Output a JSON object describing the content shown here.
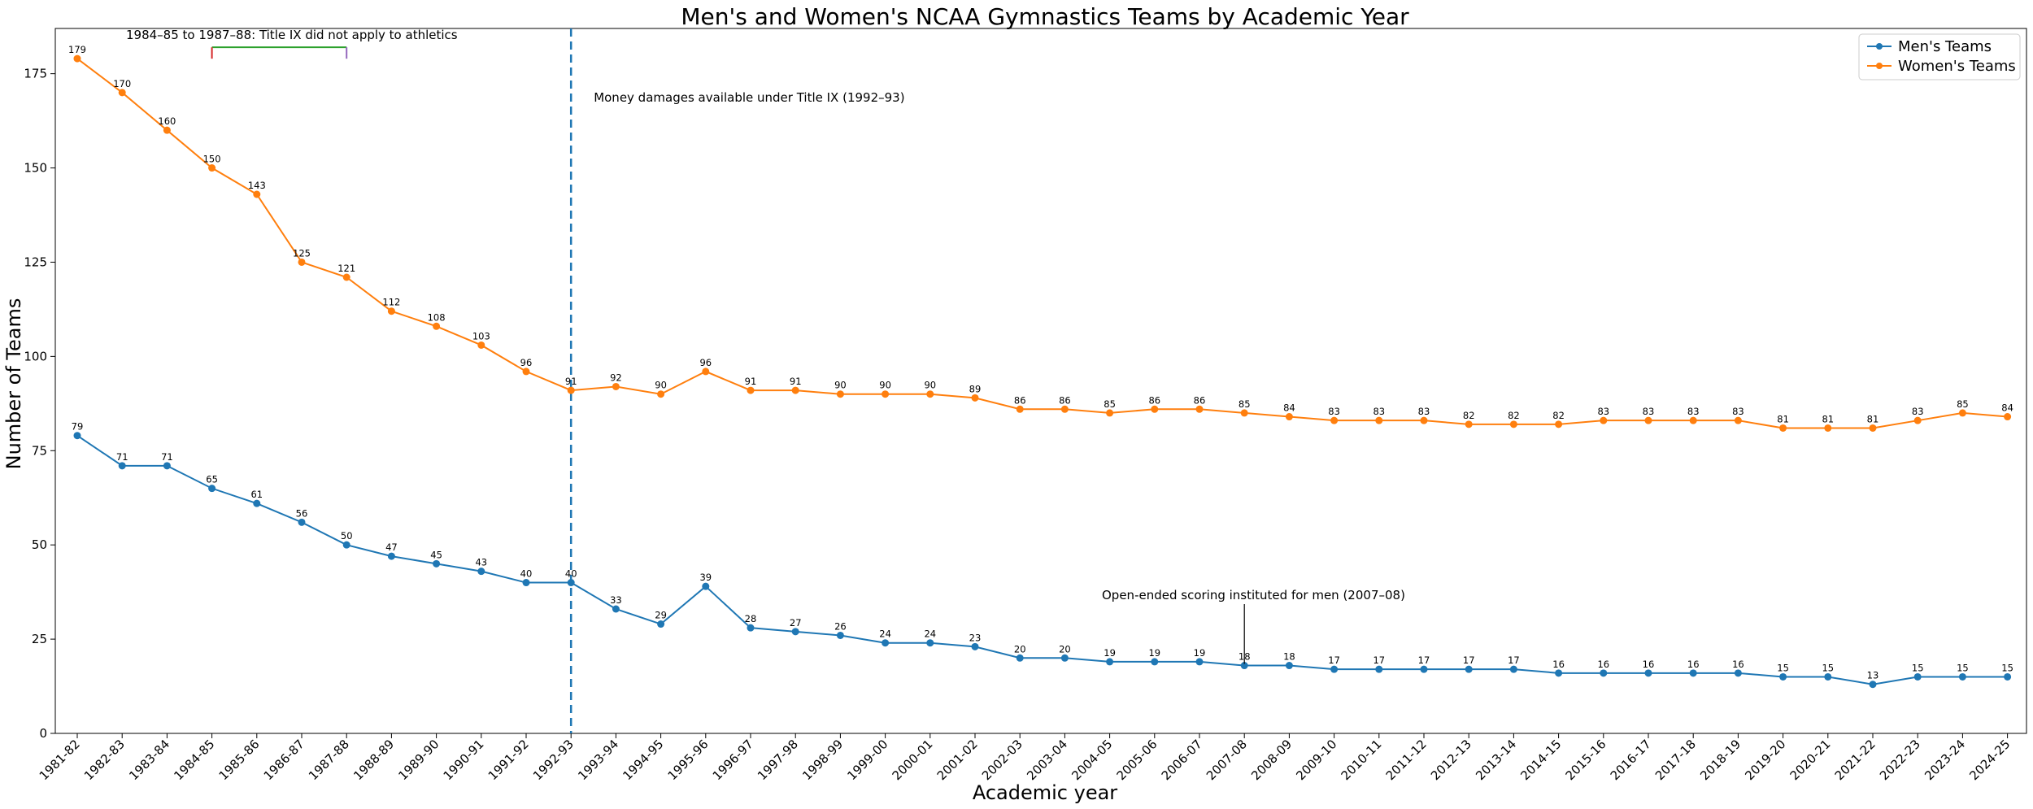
{
  "chart_data": {
    "type": "line",
    "title": "Men's and Women's NCAA Gymnastics Teams by Academic Year",
    "xlabel": "Academic year",
    "ylabel": "Number of Teams",
    "ylim": [
      0,
      187
    ],
    "yticks": [
      0,
      25,
      50,
      75,
      100,
      125,
      150,
      175
    ],
    "grid": false,
    "legend_position": "top-right",
    "categories": [
      "1981-82",
      "1982-83",
      "1983-84",
      "1984-85",
      "1985-86",
      "1986-87",
      "1987-88",
      "1988-89",
      "1989-90",
      "1990-91",
      "1991-92",
      "1992-93",
      "1993-94",
      "1994-95",
      "1995-96",
      "1996-97",
      "1997-98",
      "1998-99",
      "1999-00",
      "2000-01",
      "2001-02",
      "2002-03",
      "2003-04",
      "2004-05",
      "2005-06",
      "2006-07",
      "2007-08",
      "2008-09",
      "2009-10",
      "2010-11",
      "2011-12",
      "2012-13",
      "2013-14",
      "2014-15",
      "2015-16",
      "2016-17",
      "2017-18",
      "2018-19",
      "2019-20",
      "2020-21",
      "2021-22",
      "2022-23",
      "2023-24",
      "2024-25"
    ],
    "series": [
      {
        "name": "Men's Teams",
        "color": "#1f77b4",
        "values": [
          79,
          71,
          71,
          65,
          61,
          56,
          50,
          47,
          45,
          43,
          40,
          40,
          33,
          29,
          39,
          28,
          27,
          26,
          24,
          24,
          23,
          20,
          20,
          19,
          19,
          19,
          18,
          18,
          17,
          17,
          17,
          17,
          17,
          16,
          16,
          16,
          16,
          16,
          15,
          15,
          13,
          15,
          15,
          15
        ]
      },
      {
        "name": "Women's Teams",
        "color": "#ff7f0e",
        "values": [
          179,
          170,
          160,
          150,
          143,
          125,
          121,
          112,
          108,
          103,
          96,
          91,
          92,
          90,
          96,
          91,
          91,
          90,
          90,
          90,
          89,
          86,
          86,
          85,
          86,
          86,
          85,
          84,
          83,
          83,
          83,
          82,
          82,
          82,
          83,
          83,
          83,
          83,
          81,
          81,
          81,
          83,
          85,
          84
        ]
      }
    ],
    "vline": {
      "x": "1992-93",
      "color": "#1f77b4",
      "style": "dashed"
    },
    "annotations": {
      "title_ix_bracket": {
        "text": "1984–85 to 1987–88: Title IX did not apply to athletics",
        "from": "1984-85",
        "to": "1987-88",
        "y": 182
      },
      "money_damages": {
        "text": "Money damages available under Title IX (1992–93)"
      },
      "open_ended": {
        "text": "Open-ended scoring instituted for men (2007–08)",
        "x": "2007-08",
        "y": 18
      }
    }
  }
}
